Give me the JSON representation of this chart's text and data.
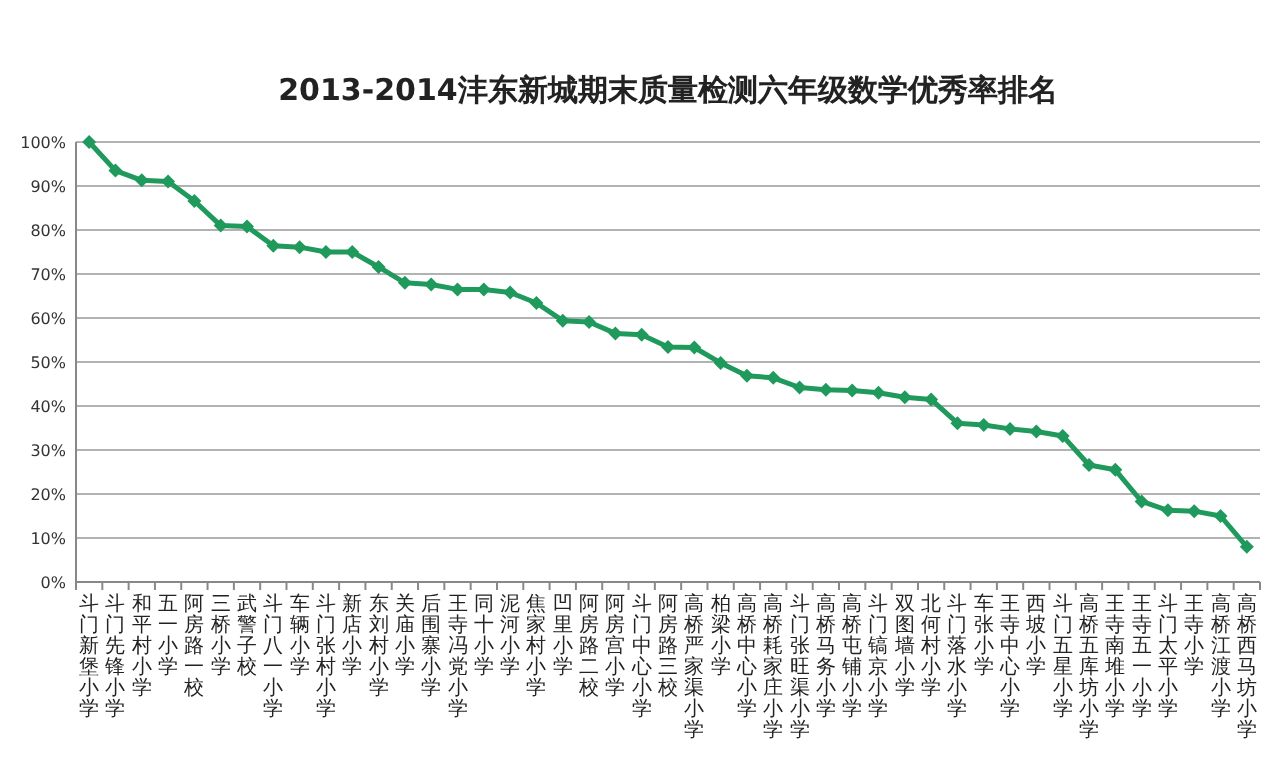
{
  "chart_data": {
    "type": "line",
    "title": "2013-2014沣东新城期末质量检测六年级数学优秀率排名",
    "categories": [
      "斗门新堡小学",
      "斗门先锋小学",
      "和平村小学",
      "五一小学",
      "阿房路一校",
      "三桥小学",
      "武警子校",
      "斗门八一小学",
      "车辆小学",
      "斗门张村小学",
      "新店小学",
      "东刘村小学",
      "关庙小学",
      "后围寨小学",
      "王寺冯党小学",
      "同十小学",
      "泥河小学",
      "焦家村小学",
      "凹里小学",
      "阿房路二校",
      "阿房宫小学",
      "斗门中心小学",
      "阿房路三校",
      "高桥严家渠小学",
      "柏梁小学",
      "高桥中心小学",
      "高桥耗家庄小学",
      "斗门张旺渠小学",
      "高桥马务小学",
      "高桥屯铺小学",
      "斗门镐京小学",
      "双图墙小学",
      "北何村小学",
      "斗门落水小学",
      "车张小学",
      "王寺中心小学",
      "西坡小学",
      "斗门五星小学",
      "高桥五库坊小学",
      "王寺南堆小学",
      "王寺五一小学",
      "斗门太平小学",
      "王寺小学",
      "高桥江渡小学",
      "高桥西马坊小学"
    ],
    "series": [
      {
        "color": "#1f9a5c",
        "values": [
          100,
          93.5,
          91.3,
          91,
          86.6,
          81,
          80.8,
          76.4,
          76.1,
          75,
          75,
          71.6,
          68,
          67.6,
          66.5,
          66.5,
          65.8,
          63.4,
          59.4,
          59.1,
          56.5,
          56.2,
          53.4,
          53.3,
          49.8,
          46.9,
          46.4,
          44.2,
          43.7,
          43.5,
          43,
          42,
          41.5,
          36.1,
          35.7,
          34.8,
          34.2,
          33.2,
          26.6,
          25.5,
          18.3,
          16.3,
          16.1,
          15,
          8
        ]
      }
    ],
    "ylim": [
      0,
      100
    ],
    "yticks": [
      {
        "value": 0,
        "label": "0%"
      },
      {
        "value": 10,
        "label": "10%"
      },
      {
        "value": 20,
        "label": "20%"
      },
      {
        "value": 30,
        "label": "30%"
      },
      {
        "value": 40,
        "label": "40%"
      },
      {
        "value": 50,
        "label": "50%"
      },
      {
        "value": 60,
        "label": "60%"
      },
      {
        "value": 70,
        "label": "70%"
      },
      {
        "value": 80,
        "label": "80%"
      },
      {
        "value": 90,
        "label": "90%"
      },
      {
        "value": 100,
        "label": "100%"
      }
    ],
    "grid": "y",
    "marker": "diamond",
    "line_style": "solid"
  }
}
